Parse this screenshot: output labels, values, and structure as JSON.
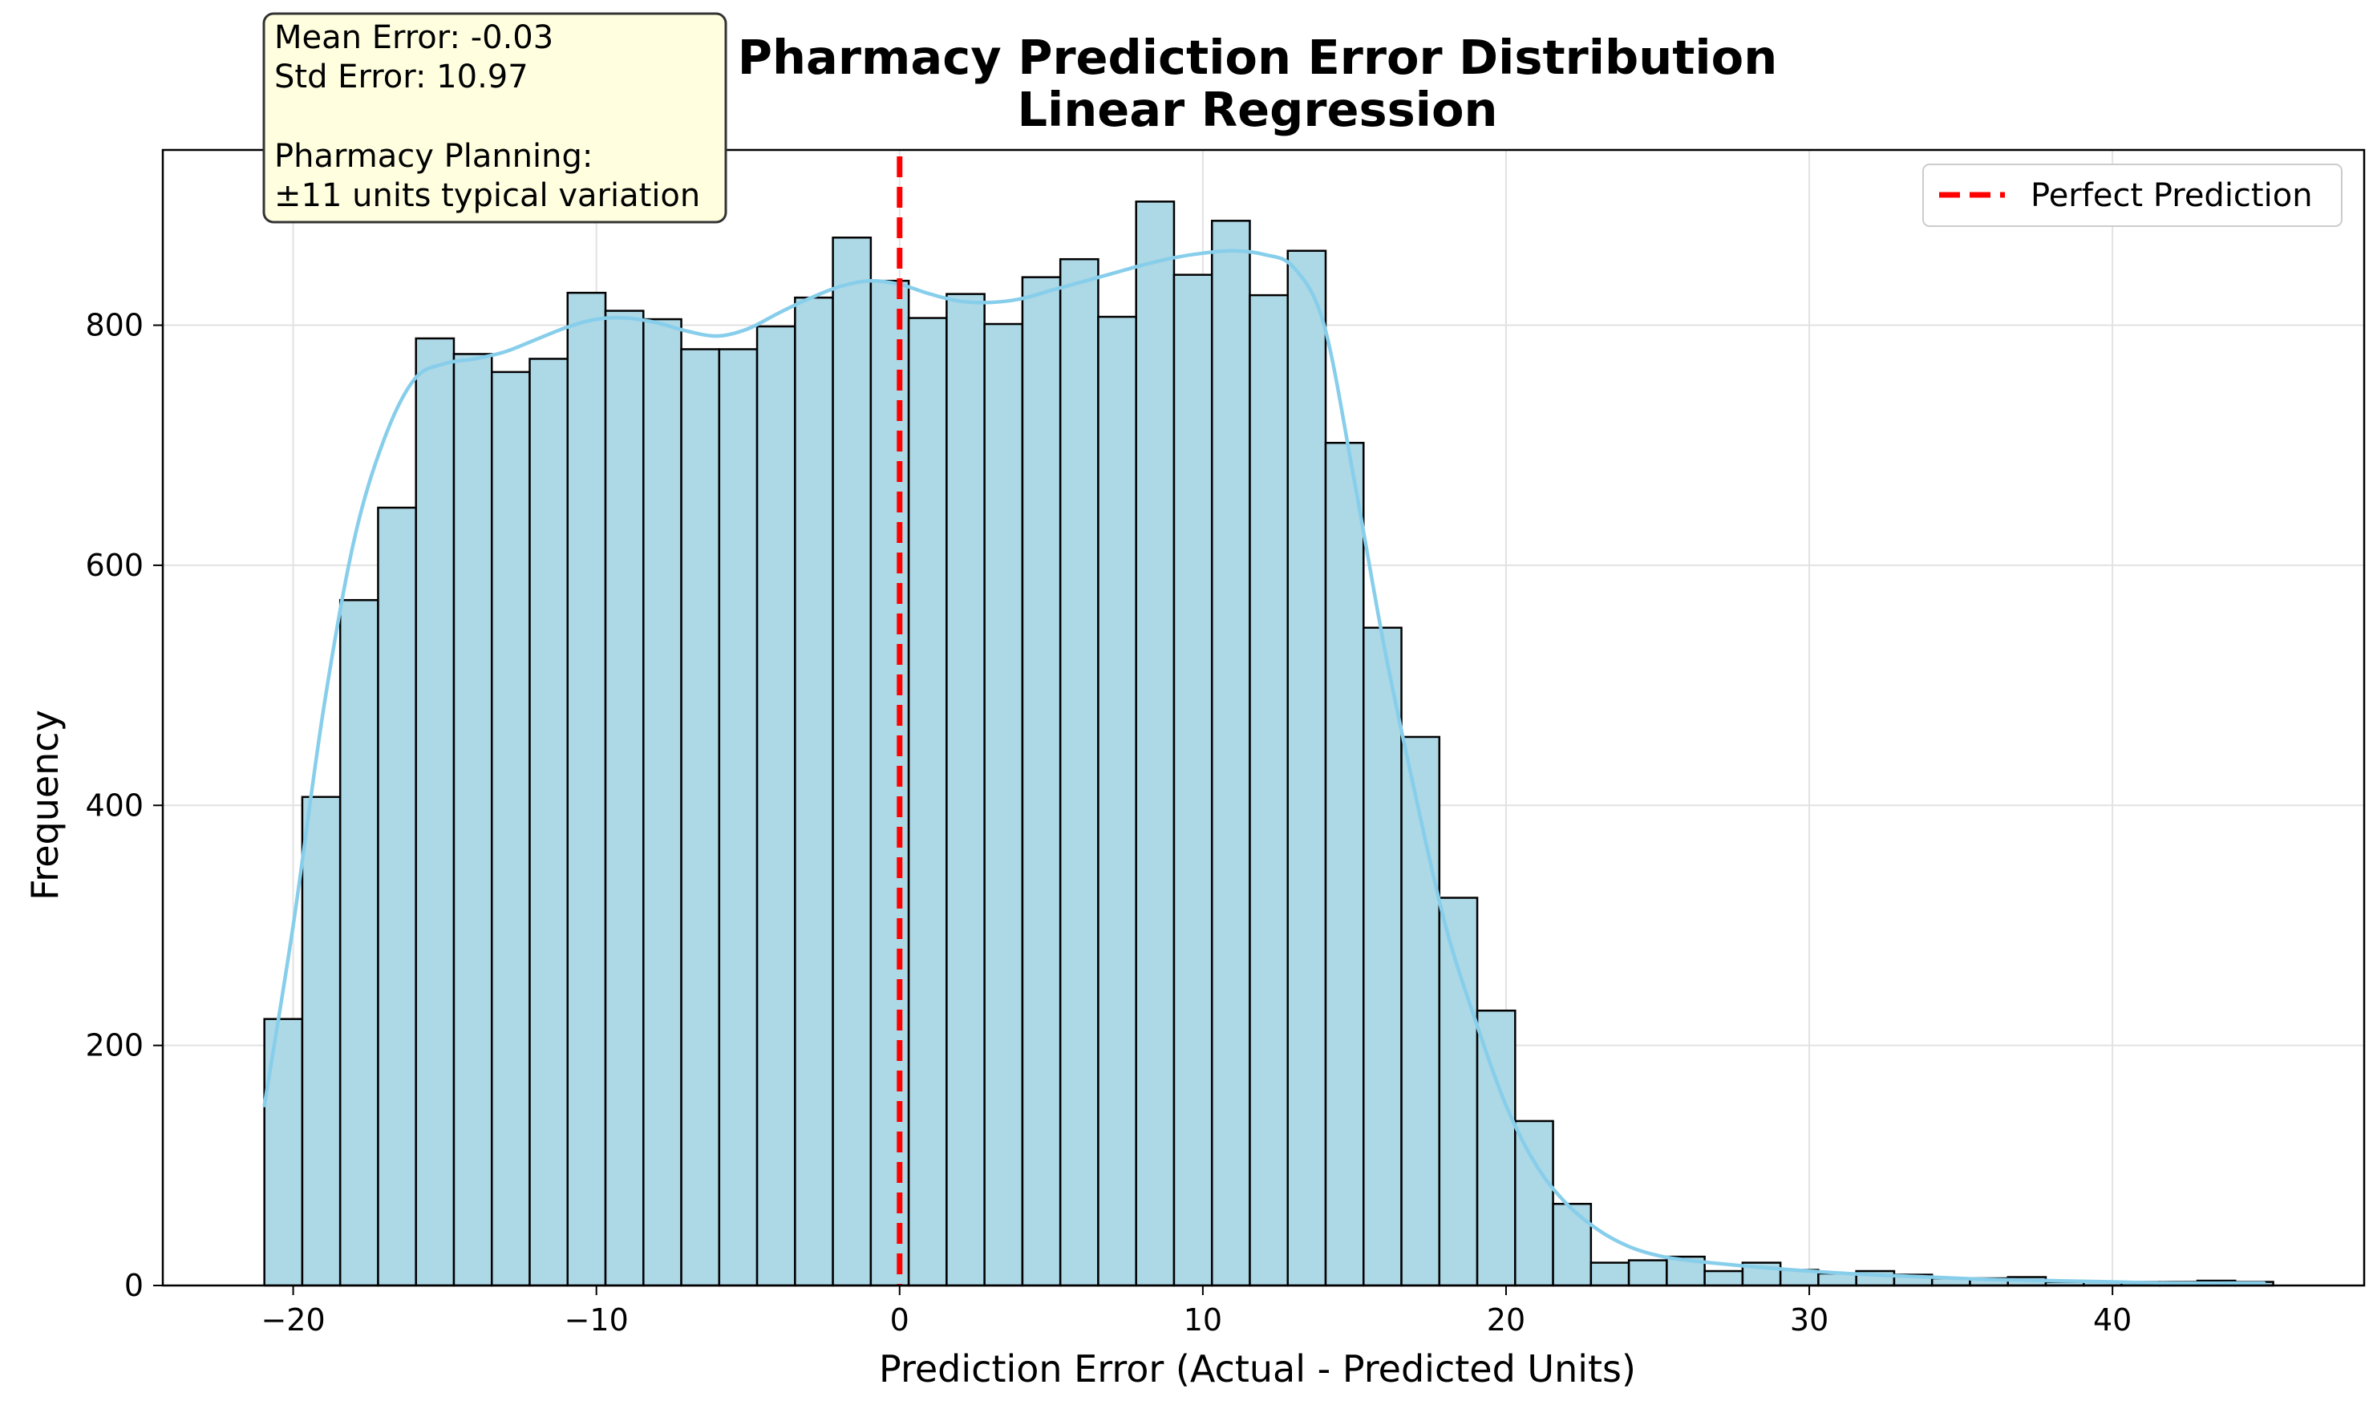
{
  "chart_data": {
    "type": "bar",
    "title": "Pharmacy Prediction Error Distribution",
    "subtitle": "Linear Regression",
    "xlabel": "Prediction Error (Actual - Predicted Units)",
    "ylabel": "Frequency",
    "xlim": [
      -24.3,
      48.3
    ],
    "ylim": [
      0,
      946
    ],
    "xticks": [
      -20,
      -10,
      0,
      10,
      20,
      30,
      40
    ],
    "xtick_labels": [
      "−20",
      "−10",
      "0",
      "10",
      "20",
      "30",
      "40"
    ],
    "yticks": [
      0,
      200,
      400,
      600,
      800
    ],
    "ytick_labels": [
      "0",
      "200",
      "400",
      "600",
      "800"
    ],
    "grid": true,
    "bins": {
      "start": -20.95,
      "width": 1.25,
      "counts": [
        222,
        407,
        571,
        648,
        789,
        776,
        761,
        772,
        827,
        812,
        805,
        780,
        780,
        799,
        823,
        873,
        837,
        806,
        826,
        801,
        840,
        855,
        807,
        903,
        842,
        887,
        825,
        862,
        702,
        548,
        457,
        323,
        229,
        137,
        68,
        19,
        21,
        24,
        12,
        19,
        13,
        10,
        12,
        9,
        6,
        6,
        7,
        3,
        3,
        3,
        3,
        4,
        3
      ]
    },
    "kde": {
      "name": "",
      "color": "#87ceeb",
      "x": [
        -20.95,
        -20,
        -19,
        -18,
        -17,
        -16,
        -15,
        -14,
        -13,
        -12,
        -11,
        -10,
        -9,
        -8,
        -7,
        -6,
        -5,
        -4,
        -3,
        -2,
        -1,
        0,
        1,
        2,
        3,
        4,
        5,
        6,
        7,
        8,
        9,
        10,
        11,
        12,
        13,
        14,
        15,
        16,
        17,
        18,
        19,
        20,
        21,
        22,
        23,
        24,
        25,
        26,
        28,
        30,
        32,
        34,
        36,
        38,
        40,
        42,
        45
      ],
      "y": [
        150,
        300,
        480,
        620,
        705,
        755,
        768,
        772,
        778,
        788,
        798,
        805,
        806,
        802,
        795,
        791,
        797,
        810,
        822,
        832,
        837,
        834,
        826,
        820,
        819,
        822,
        829,
        836,
        843,
        850,
        856,
        860,
        862,
        859,
        848,
        800,
        670,
        530,
        410,
        300,
        220,
        150,
        100,
        68,
        47,
        33,
        25,
        21,
        16,
        12,
        9,
        7,
        5,
        4,
        3,
        2,
        2
      ]
    },
    "reference_line": {
      "x": 0,
      "label": "Perfect Prediction",
      "color": "#ff0000",
      "style": "dashed"
    },
    "legend": {
      "position": "upper-right",
      "entries": [
        "Perfect Prediction"
      ]
    },
    "colors": {
      "bar_fill": "#add8e6",
      "bar_edge": "#000000",
      "kde": "#87ceeb",
      "reference": "#ff0000",
      "stats_box": "#ffffe0"
    }
  },
  "stats_box": {
    "lines": [
      "Mean Error: -0.03",
      "Std Error: 10.97",
      "",
      "Pharmacy Planning:",
      "±11 units typical variation"
    ]
  }
}
